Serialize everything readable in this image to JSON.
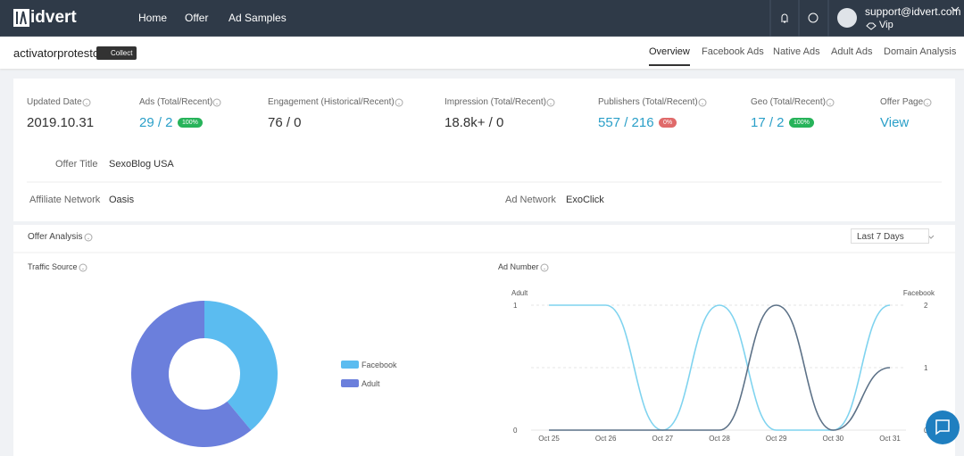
{
  "nav": {
    "logo": "idvert",
    "links": [
      "Home",
      "Offer",
      "Ad Samples"
    ],
    "email": "support@idvert.com",
    "level": "Vip"
  },
  "subheader": {
    "title": "activatorprotesto",
    "collect": "Collect",
    "tabs": [
      "Overview",
      "Facebook Ads",
      "Native Ads",
      "Adult Ads",
      "Domain Analysis"
    ],
    "active_tab": 0
  },
  "stats": [
    {
      "label": "Updated Date",
      "value": "2019.10.31",
      "highlight": false
    },
    {
      "label": "Ads (Total/Recent)",
      "value": "29 / 2",
      "badge": "100%",
      "badge_color": "#27b35a",
      "highlight": true
    },
    {
      "label": "Engagement (Historical/Recent)",
      "value": "76 / 0",
      "highlight": false
    },
    {
      "label": "Impression (Total/Recent)",
      "value": "18.8k+ / 0",
      "highlight": false
    },
    {
      "label": "Publishers (Total/Recent)",
      "value": "557 / 216",
      "badge": "0%",
      "badge_color": "#e06a6a",
      "highlight": true
    },
    {
      "label": "Geo (Total/Recent)",
      "value": "17 / 2",
      "badge": "100%",
      "badge_color": "#27b35a",
      "highlight": true
    },
    {
      "label": "Offer Page",
      "value": "View",
      "highlight": true
    }
  ],
  "info": {
    "offer_title_label": "Offer Title",
    "offer_title": "SexoBlog USA",
    "affiliate_label": "Affiliate Network",
    "affiliate": "Oasis",
    "ad_network_label": "Ad Network",
    "ad_network": "ExoClick"
  },
  "analysis": {
    "title": "Offer Analysis",
    "range": "Last 7 Days"
  },
  "traffic_chart": {
    "type": "pie",
    "title": "Traffic Source",
    "donut": true,
    "categories": [
      "Facebook",
      "Adult"
    ],
    "values": [
      39,
      61
    ],
    "colors": [
      "#5bbcf0",
      "#6b7fdc"
    ]
  },
  "ad_number_chart": {
    "type": "line",
    "title": "Ad Number",
    "y_label": "Adult",
    "y2_label": "Facebook",
    "categories": [
      "Oct 25",
      "Oct 26",
      "Oct 27",
      "Oct 28",
      "Oct 29",
      "Oct 30",
      "Oct 31"
    ],
    "ylim": [
      0,
      1
    ],
    "yticks": [
      0,
      1
    ],
    "y2lim": [
      0,
      2
    ],
    "y2ticks": [
      0,
      1,
      2
    ],
    "grid": true,
    "series": [
      {
        "name": "Adult",
        "color": "#7fd3ef",
        "values": [
          1,
          1,
          0,
          1,
          0,
          0,
          1
        ]
      },
      {
        "name": "Facebook",
        "color": "#5c7187",
        "axis": "y2",
        "values": [
          0,
          0,
          0,
          0,
          2,
          0,
          1
        ]
      }
    ]
  }
}
